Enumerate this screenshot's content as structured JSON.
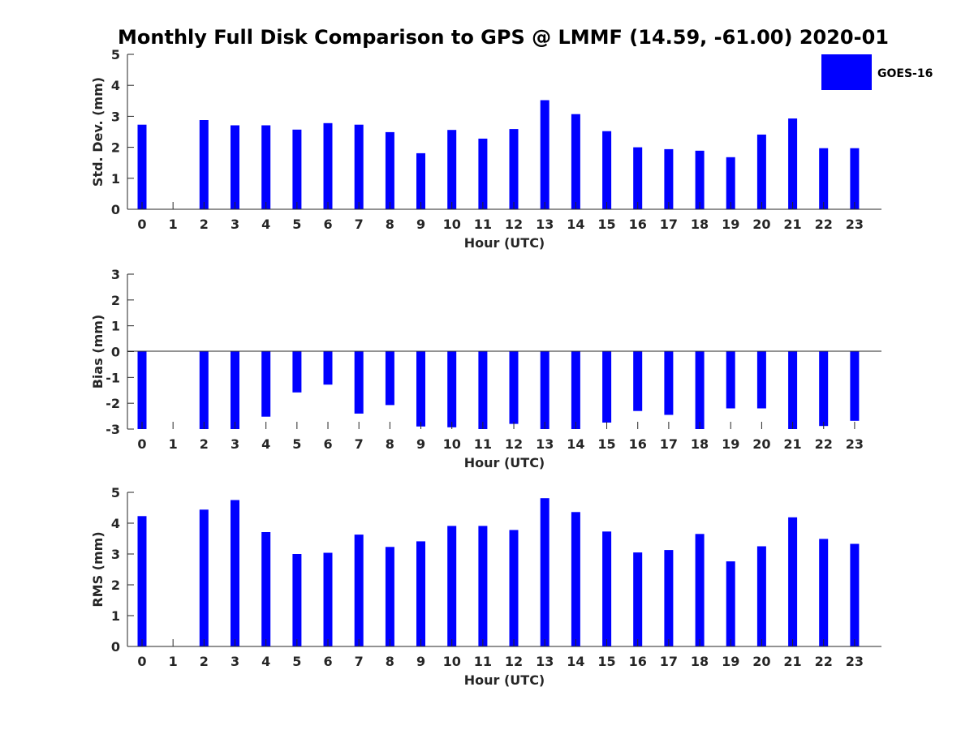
{
  "figure_title": "Monthly Full Disk Comparison to GPS @ LMMF (14.59, -61.00) 2020-01",
  "legend": {
    "label": "GOES-16"
  },
  "colors": {
    "bar": "#0000ff",
    "axis": "#262626",
    "background": "#ffffff"
  },
  "chart_data": [
    {
      "type": "bar",
      "title": "Monthly Full Disk Comparison to GPS @ LMMF (14.59, -61.00) 2020-01",
      "xlabel": "Hour (UTC)",
      "ylabel": "Std. Dev. (mm)",
      "ylim": [
        0,
        5
      ],
      "yticks": [
        "0",
        "1",
        "2",
        "3",
        "4",
        "5"
      ],
      "categories": [
        "0",
        "1",
        "2",
        "3",
        "4",
        "5",
        "6",
        "7",
        "8",
        "9",
        "10",
        "11",
        "12",
        "13",
        "14",
        "15",
        "16",
        "17",
        "18",
        "19",
        "20",
        "21",
        "22",
        "23"
      ],
      "series": [
        {
          "name": "GOES-16",
          "values": [
            2.73,
            null,
            2.88,
            2.71,
            2.71,
            2.57,
            2.78,
            2.73,
            2.49,
            1.81,
            2.56,
            2.28,
            2.59,
            3.52,
            3.07,
            2.52,
            2.0,
            1.94,
            1.89,
            1.68,
            2.41,
            2.93,
            1.97,
            1.97
          ]
        }
      ]
    },
    {
      "type": "bar",
      "xlabel": "Hour (UTC)",
      "ylabel": "Bias (mm)",
      "ylim": [
        -3,
        3
      ],
      "yticks": [
        "-3",
        "-2",
        "-1",
        "0",
        "1",
        "2",
        "3"
      ],
      "categories": [
        "0",
        "1",
        "2",
        "3",
        "4",
        "5",
        "6",
        "7",
        "8",
        "9",
        "10",
        "11",
        "12",
        "13",
        "14",
        "15",
        "16",
        "17",
        "18",
        "19",
        "20",
        "21",
        "22",
        "23"
      ],
      "series": [
        {
          "name": "GOES-16",
          "values": [
            -3.0,
            null,
            -3.0,
            -3.0,
            -2.52,
            -1.58,
            -1.28,
            -2.4,
            -2.07,
            -2.9,
            -2.93,
            -3.0,
            -2.8,
            -3.0,
            -3.0,
            -2.75,
            -2.3,
            -2.45,
            -3.0,
            -2.2,
            -2.2,
            -3.0,
            -2.88,
            -2.68
          ]
        }
      ]
    },
    {
      "type": "bar",
      "xlabel": "Hour (UTC)",
      "ylabel": "RMS (mm)",
      "ylim": [
        0,
        5
      ],
      "yticks": [
        "0",
        "1",
        "2",
        "3",
        "4",
        "5"
      ],
      "categories": [
        "0",
        "1",
        "2",
        "3",
        "4",
        "5",
        "6",
        "7",
        "8",
        "9",
        "10",
        "11",
        "12",
        "13",
        "14",
        "15",
        "16",
        "17",
        "18",
        "19",
        "20",
        "21",
        "22",
        "23"
      ],
      "series": [
        {
          "name": "GOES-16",
          "values": [
            4.23,
            null,
            4.44,
            4.75,
            3.71,
            3.0,
            3.04,
            3.63,
            3.23,
            3.41,
            3.91,
            3.91,
            3.78,
            4.81,
            4.36,
            3.73,
            3.05,
            3.13,
            3.65,
            2.76,
            3.25,
            4.19,
            3.49,
            3.33
          ]
        }
      ]
    }
  ]
}
